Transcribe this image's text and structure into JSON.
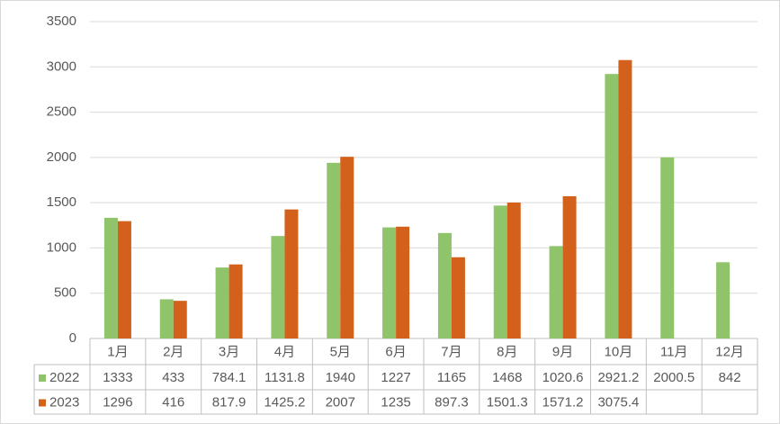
{
  "chart_data": {
    "type": "bar",
    "categories": [
      "1月",
      "2月",
      "3月",
      "4月",
      "5月",
      "6月",
      "7月",
      "8月",
      "9月",
      "10月",
      "11月",
      "12月"
    ],
    "series": [
      {
        "name": "2022",
        "color": "#8fc46a",
        "values": [
          1333,
          433,
          784.1,
          1131.8,
          1940,
          1227,
          1165,
          1468,
          1020.6,
          2921.2,
          2000.5,
          842
        ]
      },
      {
        "name": "2023",
        "color": "#d4611b",
        "values": [
          1296,
          416,
          817.9,
          1425.2,
          2007,
          1235,
          897.3,
          1501.3,
          1571.2,
          3075.4,
          null,
          null
        ]
      }
    ],
    "ylim": [
      0,
      3500
    ],
    "yticks": [
      0,
      500,
      1000,
      1500,
      2000,
      2500,
      3000,
      3500
    ],
    "grid": true
  }
}
